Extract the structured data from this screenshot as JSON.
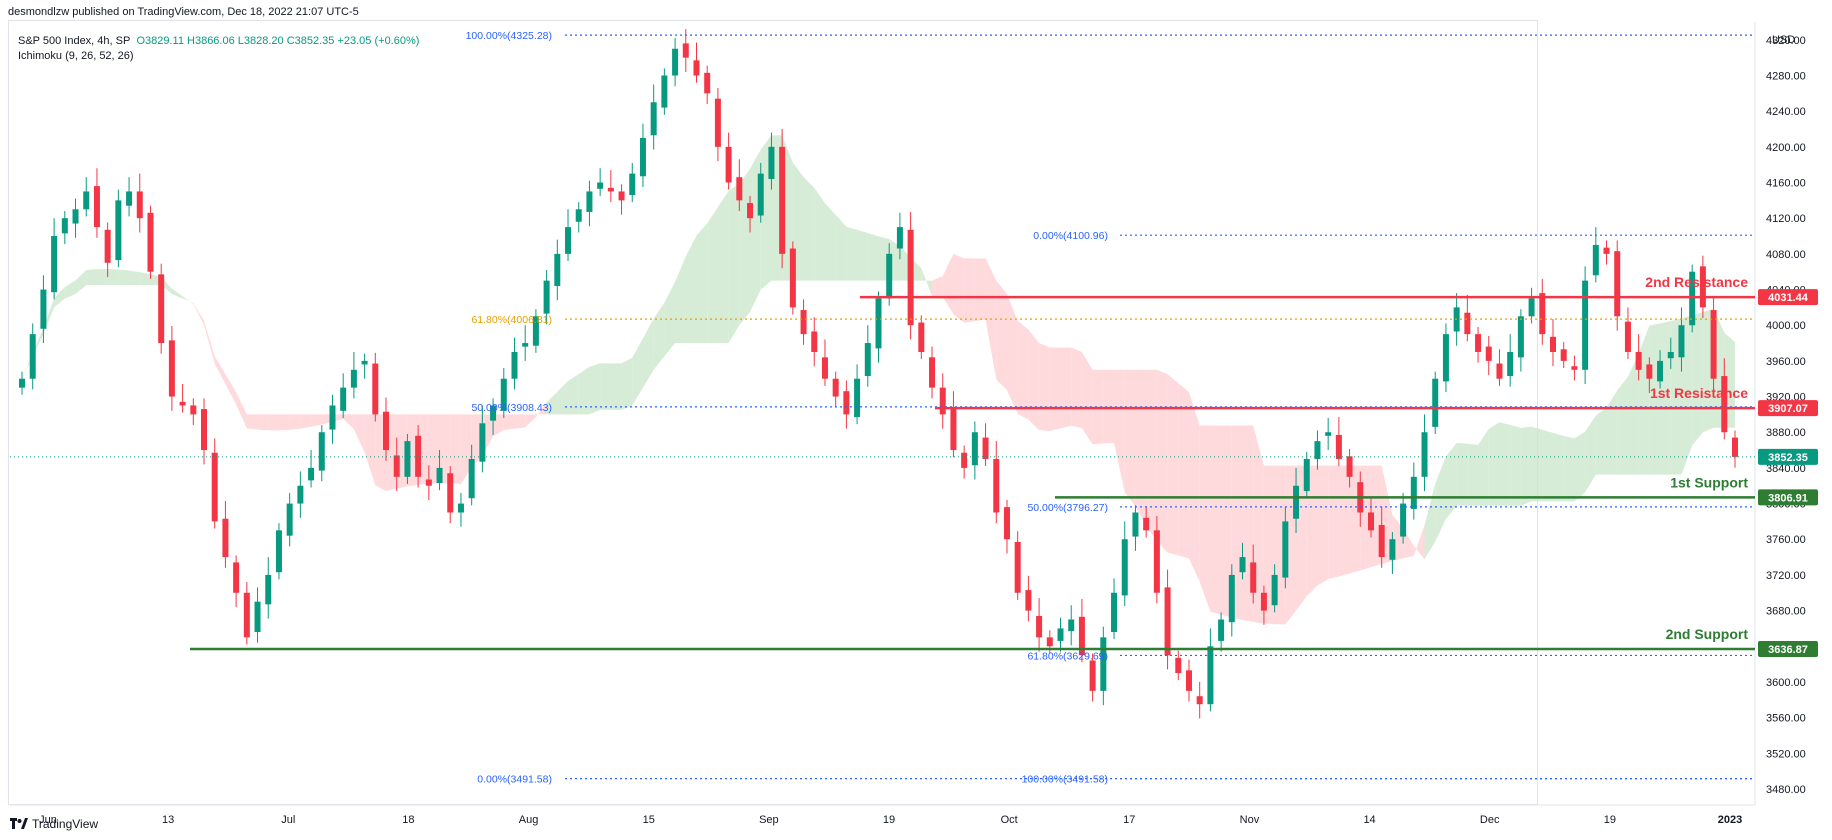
{
  "header": {
    "published": "desmondlzw published on TradingView.com, Dec 18, 2022 21:07 UTC-5"
  },
  "legend": {
    "symbol": "S&P 500 Index, 4h, SP",
    "ohlc": "O3829.11  H3866.06  L3828.20  C3852.35  +23.05 (+0.60%)",
    "indicator": "Ichimoku (9, 26, 52, 26)"
  },
  "currency": "USD",
  "brand": "TradingView",
  "colors": {
    "up": "#089981",
    "down": "#f23645",
    "resistance": "#f23645",
    "support": "#2e7d32",
    "fib_blue": "#2962ff",
    "fib_orange": "#e6a100",
    "cloud_bull": "#c8e6c9",
    "cloud_bear": "#ffcdd2"
  },
  "chart_data": {
    "type": "candlestick",
    "symbol": "S&P 500 Index",
    "interval": "4h",
    "y_axis": {
      "ticks": [
        3480,
        3520,
        3560,
        3600,
        3640,
        3680,
        3720,
        3760,
        3800,
        3840,
        3880,
        3920,
        3960,
        4000,
        4040,
        4080,
        4120,
        4160,
        4200,
        4240,
        4280,
        4320
      ],
      "range": [
        3462,
        4340
      ]
    },
    "x_axis": {
      "ticks": [
        "Jun",
        "13",
        "Jul",
        "18",
        "Aug",
        "15",
        "Sep",
        "19",
        "Oct",
        "17",
        "Nov",
        "14",
        "Dec",
        "19",
        "2023"
      ]
    },
    "price_tags": [
      {
        "name": "2nd Resistance",
        "value": 4031.44
      },
      {
        "name": "1st Resistance",
        "value": 3907.07
      },
      {
        "name": "last",
        "value": 3852.35
      },
      {
        "name": "1st Support",
        "value": 3806.91
      },
      {
        "name": "2nd Support",
        "value": 3636.87
      }
    ],
    "zone_labels": [
      "2nd Resistance",
      "1st Resistance",
      "1st Support",
      "2nd Support"
    ],
    "fib_labels": [
      "100.00%(4325.28)",
      "61.80%(4006.81)",
      "50.00%(3908.43)",
      "0.00%(3491.58)",
      "0.00%(4100.96)",
      "50.00%(3796.27)",
      "61.80%(3629.69)",
      "100.00%(3491.58)"
    ],
    "fib_values": [
      4325.28,
      4006.81,
      3908.43,
      3491.58,
      4100.96,
      3796.27,
      3629.69,
      3491.58
    ],
    "last_close": 3852.35,
    "approx_closes": [
      3940,
      3990,
      4040,
      4100,
      4120,
      4130,
      4150,
      4110,
      4070,
      4140,
      4150,
      4120,
      4060,
      3980,
      3920,
      3910,
      3900,
      3860,
      3780,
      3740,
      3700,
      3650,
      3690,
      3720,
      3770,
      3800,
      3820,
      3840,
      3880,
      3910,
      3930,
      3950,
      3960,
      3900,
      3860,
      3830,
      3870,
      3830,
      3820,
      3840,
      3790,
      3800,
      3850,
      3890,
      3910,
      3940,
      3970,
      3980,
      4010,
      4050,
      4080,
      4110,
      4130,
      4150,
      4160,
      4150,
      4140,
      4170,
      4210,
      4250,
      4280,
      4310,
      4300,
      4280,
      4260,
      4200,
      4160,
      4140,
      4120,
      4170,
      4200,
      4080,
      4020,
      3990,
      3970,
      3940,
      3920,
      3900,
      3940,
      3980,
      4030,
      4080,
      4110,
      4000,
      3970,
      3930,
      3900,
      3860,
      3840,
      3880,
      3850,
      3790,
      3760,
      3700,
      3680,
      3650,
      3640,
      3660,
      3670,
      3630,
      3590,
      3650,
      3700,
      3760,
      3790,
      3770,
      3700,
      3630,
      3610,
      3590,
      3575,
      3640,
      3670,
      3720,
      3740,
      3700,
      3680,
      3720,
      3780,
      3820,
      3850,
      3870,
      3880,
      3850,
      3830,
      3790,
      3770,
      3740,
      3760,
      3800,
      3830,
      3880,
      3940,
      3990,
      4020,
      3990,
      3970,
      3960,
      3940,
      3970,
      4010,
      4030,
      3990,
      3970,
      3960,
      3950,
      4050,
      4090,
      4080,
      4010,
      3970,
      3950,
      3940,
      3960,
      3970,
      4000,
      4060,
      4020,
      3940,
      3880,
      3852.35
    ]
  }
}
